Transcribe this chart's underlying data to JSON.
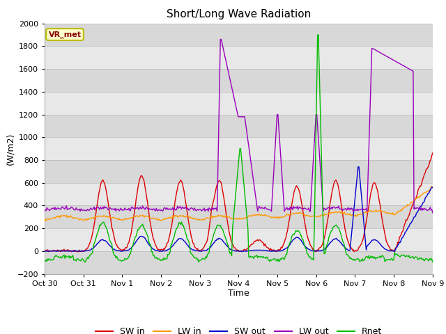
{
  "title": "Short/Long Wave Radiation",
  "ylabel": "(W/m2)",
  "xlabel": "Time",
  "ylim": [
    -200,
    2000
  ],
  "yticks": [
    -200,
    0,
    200,
    400,
    600,
    800,
    1000,
    1200,
    1400,
    1600,
    1800,
    2000
  ],
  "xtick_labels": [
    "Oct 30",
    "Oct 31",
    "Nov 1",
    "Nov 2",
    "Nov 3",
    "Nov 4",
    "Nov 5",
    "Nov 6",
    "Nov 7",
    "Nov 8",
    "Nov 9"
  ],
  "colors": {
    "SW_in": "#dd0000",
    "LW_in": "#ff9900",
    "SW_out": "#0000cc",
    "LW_out": "#9900bb",
    "Rnet": "#00bb00"
  },
  "annotation_text": "VR_met",
  "annotation_box_facecolor": "#ffffcc",
  "annotation_box_edgecolor": "#bbbb00",
  "plot_bg_color": "#e8e8e8",
  "band_colors": [
    "#d8d8d8",
    "#e8e8e8"
  ],
  "grid_color": "#cccccc",
  "linewidth": 1.0,
  "legend_labels": [
    "SW in",
    "LW in",
    "SW out",
    "LW out",
    "Rnet"
  ],
  "fig_facecolor": "#ffffff"
}
